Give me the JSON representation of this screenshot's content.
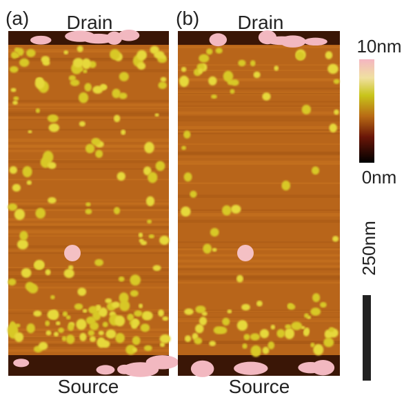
{
  "panels": [
    {
      "label": "(a)",
      "top": "Drain",
      "bottom": "Source"
    },
    {
      "label": "(b)",
      "top": "Drain",
      "bottom": "Source"
    }
  ],
  "colorbar": {
    "max_label": "10nm",
    "min_label": "0nm"
  },
  "scale_bar": {
    "label": "250nm"
  }
}
